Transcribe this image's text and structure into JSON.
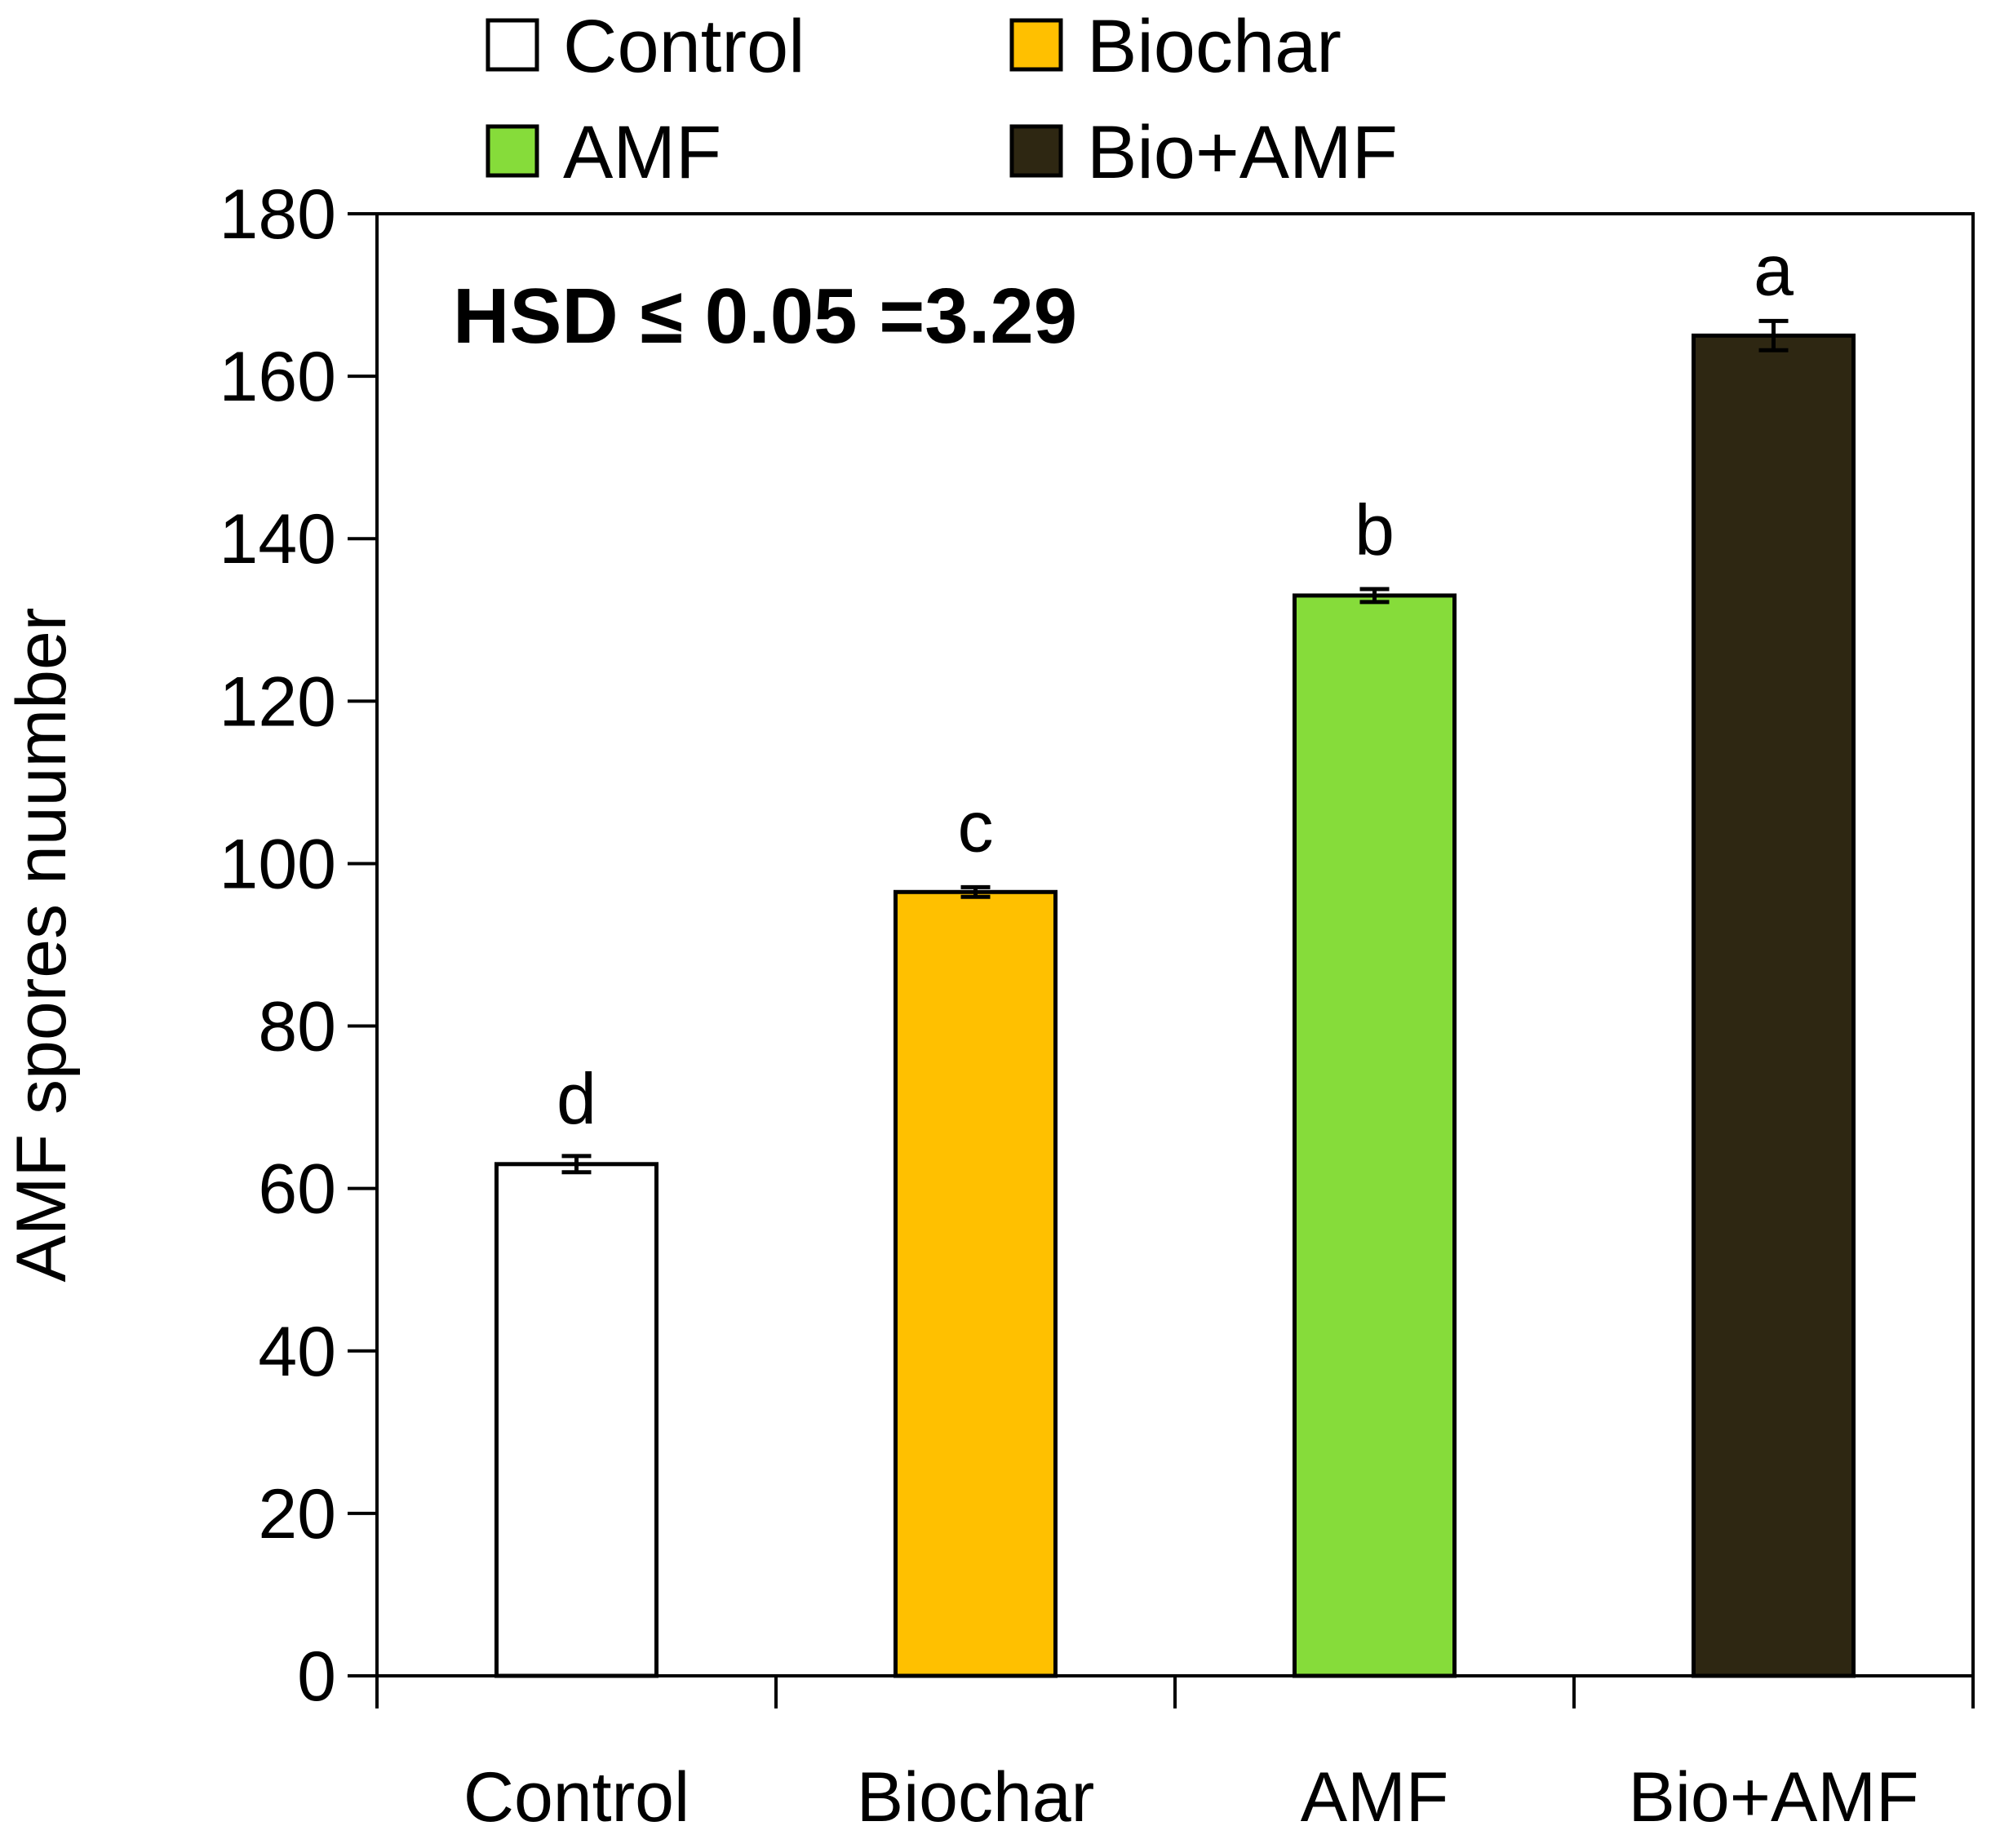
{
  "chart_data": {
    "type": "bar",
    "title": "",
    "xlabel": "",
    "ylabel": "AMF spores nuumber",
    "ylim": [
      0,
      180
    ],
    "yticks": [
      0,
      20,
      40,
      60,
      80,
      100,
      120,
      140,
      160,
      180
    ],
    "categories": [
      "Control",
      "Biochar",
      "AMF",
      "Bio+AMF"
    ],
    "values": [
      63,
      96.5,
      133,
      165
    ],
    "errors": [
      1.0,
      0.6,
      0.8,
      1.8
    ],
    "letters": [
      "d",
      "c",
      "b",
      "a"
    ],
    "colors": [
      "#ffffff",
      "#ffc000",
      "#86dc3a",
      "#2e2712"
    ],
    "legend": [
      {
        "label": "Control",
        "color": "#ffffff"
      },
      {
        "label": "Biochar",
        "color": "#ffc000"
      },
      {
        "label": "AMF",
        "color": "#86dc3a"
      },
      {
        "label": "Bio+AMF",
        "color": "#2e2712"
      }
    ],
    "annotation": "HSD ≤ 0.05 =3.29",
    "legend_position": "top"
  }
}
